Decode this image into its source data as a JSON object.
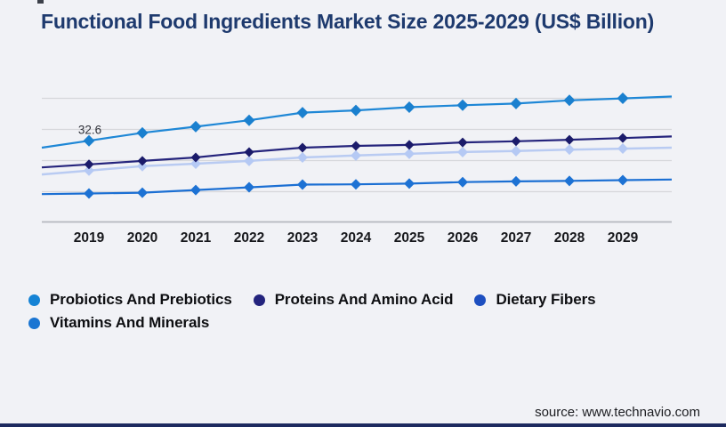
{
  "title": "Functional Food Ingredients Market Size 2025-2029 (US$ Billion)",
  "source_text": "source: www.technavio.com",
  "colors": {
    "background": "#f1f2f6",
    "title": "#1e3a6e",
    "gridline": "#d6d7db",
    "axis_line": "#b5b8be",
    "year_label": "#17181c",
    "legend_text": "#0e0f12",
    "source_text": "#1c1d21",
    "bottom_bar": "#1d2a5f",
    "annotation_text": "#30323a"
  },
  "legend": {
    "items": [
      {
        "label": "Probiotics And Prebiotics",
        "dot_color": "#1583d5"
      },
      {
        "label": "Proteins And Amino Acid",
        "dot_color": "#23237d"
      },
      {
        "label": "Dietary Fibers",
        "dot_color": "#1d4fc0"
      },
      {
        "label": "Vitamins And Minerals",
        "dot_color": "#1a75d2"
      }
    ]
  },
  "chart_data": {
    "type": "line",
    "title": "Functional Food Ingredients Market Size 2025-2029 (US$ Billion)",
    "unit": "US$ Billion",
    "x_labels": [
      "2019",
      "2020",
      "2021",
      "2022",
      "2023",
      "2024",
      "2025",
      "2026",
      "2027",
      "2028",
      "2029"
    ],
    "ylim": [
      0,
      50
    ],
    "grid": true,
    "legend_position": "bottom",
    "marker_shape": "diamond",
    "series": [
      {
        "name": "Probiotics And Prebiotics",
        "line_color": "#1e87d6",
        "marker_color": "#1a80cf",
        "values": [
          32.6,
          35.8,
          38.3,
          40.9,
          44.0,
          44.9,
          46.2,
          47.0,
          47.7,
          49.0,
          49.8
        ]
      },
      {
        "name": "Proteins And Amino Acid",
        "line_color": "#25247c",
        "marker_color": "#1b1b6a",
        "values": [
          23.0,
          24.4,
          25.8,
          28.0,
          29.8,
          30.5,
          30.9,
          31.9,
          32.4,
          33.0,
          33.7
        ]
      },
      {
        "name": "Dietary Fibers",
        "line_color": "#b9cbf2",
        "marker_color": "#b5c9f4",
        "values": [
          20.5,
          22.3,
          23.3,
          24.4,
          25.8,
          26.6,
          27.3,
          28.0,
          28.4,
          29.0,
          29.4
        ]
      },
      {
        "name": "Vitamins And Minerals",
        "line_color": "#1b6fd3",
        "marker_color": "#1d72d4",
        "values": [
          11.2,
          11.5,
          12.6,
          13.7,
          14.8,
          14.9,
          15.2,
          15.8,
          16.1,
          16.3,
          16.6
        ]
      }
    ],
    "data_labels": [
      {
        "series": "Probiotics And Prebiotics",
        "x": "2019",
        "text": "32.6"
      }
    ]
  }
}
